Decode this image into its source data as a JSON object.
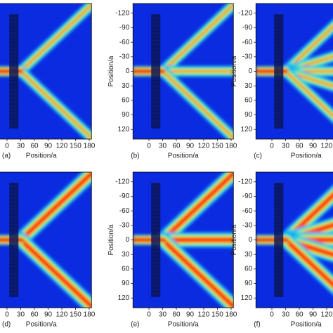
{
  "chart_data": [
    {
      "type": "heatmap",
      "panel": "(a)",
      "xlabel": "Position/a",
      "xlim": [
        -35,
        185
      ],
      "ylim": [
        -140,
        140
      ],
      "xticks": [
        0,
        30,
        60,
        90,
        120,
        150,
        180
      ]
    },
    {
      "type": "heatmap",
      "panel": "(b)",
      "xlabel": "Position/a",
      "ylabel": "Position/a",
      "xlim": [
        -35,
        185
      ],
      "ylim": [
        -140,
        140
      ],
      "xticks": [
        0,
        30,
        60,
        90,
        120,
        150,
        180
      ],
      "yticks": [
        -120,
        -90,
        -60,
        -30,
        0,
        30,
        60,
        90,
        120
      ]
    },
    {
      "type": "heatmap",
      "panel": "(c)",
      "xlabel": "Position/a",
      "ylabel": "Position/a",
      "xlim": [
        -35,
        185
      ],
      "ylim": [
        -140,
        140
      ],
      "xticks": [
        0,
        30,
        60,
        90,
        120
      ],
      "yticks": [
        -120,
        -90,
        -60,
        -30,
        0,
        30,
        60,
        90,
        120
      ]
    },
    {
      "type": "heatmap",
      "panel": "(d)",
      "xlabel": "Position/a",
      "xlim": [
        -35,
        185
      ],
      "ylim": [
        -140,
        140
      ],
      "xticks": [
        0,
        30,
        60,
        90,
        120,
        150,
        180
      ]
    },
    {
      "type": "heatmap",
      "panel": "(e)",
      "xlabel": "Position/a",
      "ylabel": "Position/a",
      "xlim": [
        -35,
        185
      ],
      "ylim": [
        -140,
        140
      ],
      "xticks": [
        0,
        30,
        60,
        90,
        120,
        150,
        180
      ],
      "yticks": [
        -120,
        -90,
        -60,
        -30,
        0,
        30,
        60,
        90,
        120
      ]
    },
    {
      "type": "heatmap",
      "panel": "(f)",
      "xlabel": "Position/a",
      "ylabel": "Position/a",
      "xlim": [
        -35,
        185
      ],
      "ylim": [
        -140,
        140
      ],
      "xticks": [
        0,
        30,
        60,
        90,
        120
      ],
      "yticks": [
        -120,
        -90,
        -60,
        -30,
        0,
        30,
        60,
        90,
        120
      ]
    }
  ]
}
